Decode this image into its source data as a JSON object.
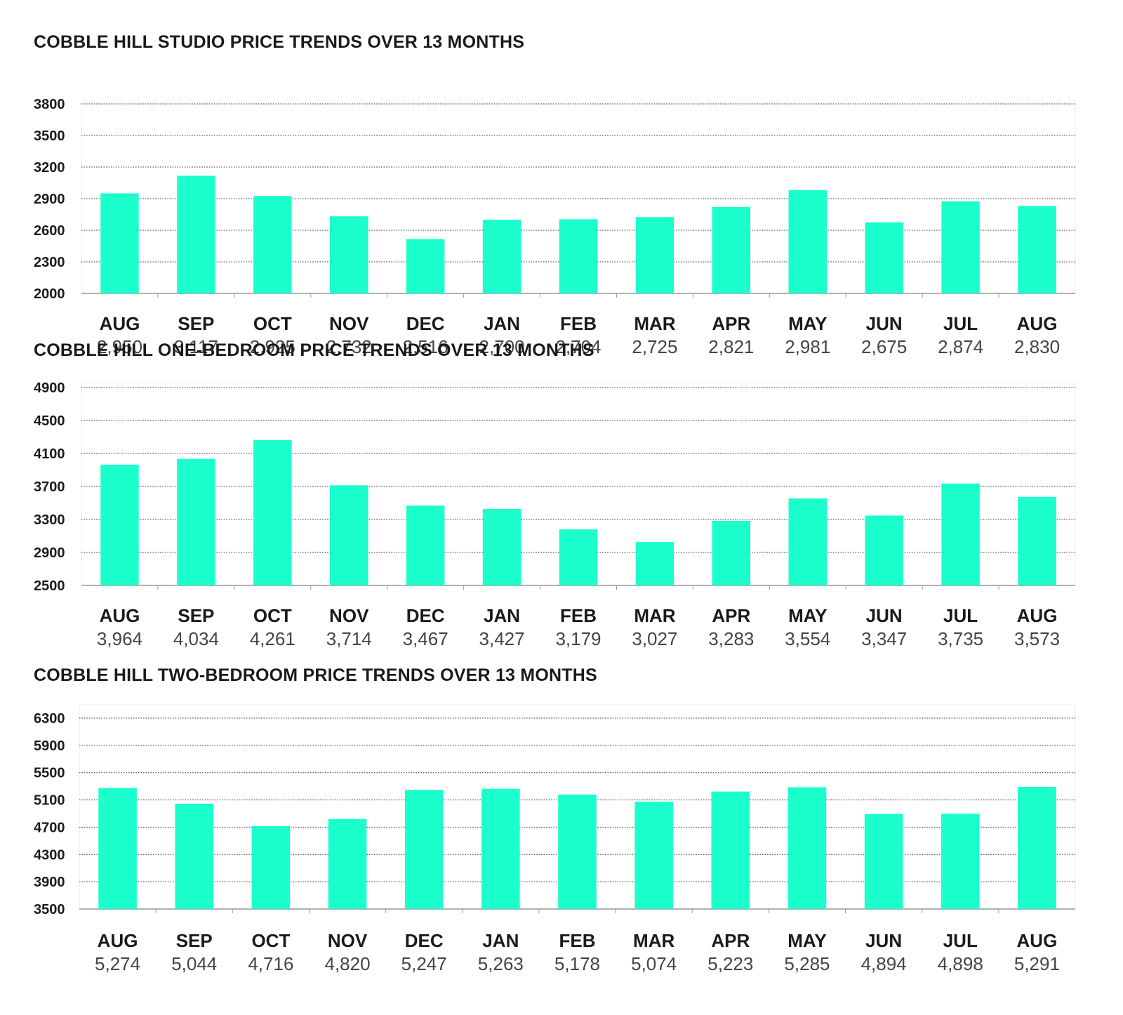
{
  "page": {
    "background": "#ffffff",
    "bar_color": "#1affcb"
  },
  "chart_data": [
    {
      "type": "bar",
      "title": "COBBLE HILL STUDIO PRICE TRENDS OVER 13 MONTHS",
      "categories": [
        "AUG",
        "SEP",
        "OCT",
        "NOV",
        "DEC",
        "JAN",
        "FEB",
        "MAR",
        "APR",
        "MAY",
        "JUN",
        "JUL",
        "AUG"
      ],
      "values": [
        2950,
        3117,
        2925,
        2732,
        2516,
        2700,
        2704,
        2725,
        2821,
        2981,
        2675,
        2874,
        2830
      ],
      "value_labels": [
        "2,950",
        "3,117",
        "2,925",
        "2,732",
        "2,516",
        "2,700",
        "2,704",
        "2,725",
        "2,821",
        "2,981",
        "2,675",
        "2,874",
        "2,830"
      ],
      "yticks": [
        "3800",
        "3500",
        "3200",
        "2900",
        "2600",
        "2300",
        "2000"
      ],
      "ylim": [
        2000,
        3800
      ],
      "xlabel": "",
      "ylabel": "",
      "grid": true,
      "gridstyle": "dotted"
    },
    {
      "type": "bar",
      "title": "COBBLE HILL ONE-BEDROOM PRICE TRENDS OVER 13 MONTHS",
      "categories": [
        "AUG",
        "SEP",
        "OCT",
        "NOV",
        "DEC",
        "JAN",
        "FEB",
        "MAR",
        "APR",
        "MAY",
        "JUN",
        "JUL",
        "AUG"
      ],
      "values": [
        3964,
        4034,
        4261,
        3714,
        3467,
        3427,
        3179,
        3027,
        3283,
        3554,
        3347,
        3735,
        3573
      ],
      "value_labels": [
        "3,964",
        "4,034",
        "4,261",
        "3,714",
        "3,467",
        "3,427",
        "3,179",
        "3,027",
        "3,283",
        "3,554",
        "3,347",
        "3,735",
        "3,573"
      ],
      "yticks": [
        "4900",
        "4500",
        "4100",
        "3700",
        "3300",
        "2900",
        "2500"
      ],
      "ylim": [
        2500,
        4900
      ],
      "xlabel": "",
      "ylabel": "",
      "grid": true,
      "gridstyle": "dotted"
    },
    {
      "type": "bar",
      "title": "COBBLE HILL TWO-BEDROOM PRICE TRENDS OVER 13 MONTHS",
      "categories": [
        "AUG",
        "SEP",
        "OCT",
        "NOV",
        "DEC",
        "JAN",
        "FEB",
        "MAR",
        "APR",
        "MAY",
        "JUN",
        "JUL",
        "AUG"
      ],
      "values": [
        5274,
        5044,
        4716,
        4820,
        5247,
        5263,
        5178,
        5074,
        5223,
        5285,
        4894,
        4898,
        5291
      ],
      "value_labels": [
        "5,274",
        "5,044",
        "4,716",
        "4,820",
        "5,247",
        "5,263",
        "5,178",
        "5,074",
        "5,223",
        "5,285",
        "4,894",
        "4,898",
        "5,291"
      ],
      "yticks": [
        "6300",
        "5900",
        "5500",
        "5100",
        "4700",
        "4300",
        "3900",
        "3500"
      ],
      "ylim": [
        3500,
        6300
      ],
      "xlabel": "",
      "ylabel": "",
      "grid": true,
      "gridstyle": "dotted"
    }
  ]
}
